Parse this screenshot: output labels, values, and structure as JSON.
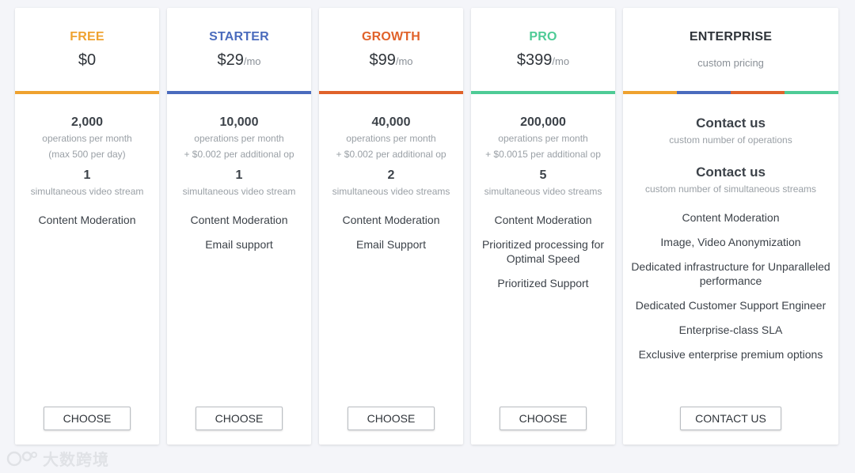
{
  "plans": [
    {
      "name": "FREE",
      "color": "#efa22f",
      "price": "$0",
      "per": "",
      "ops": "2,000",
      "ops_sub1": "operations per month",
      "ops_sub2": "(max 500 per day)",
      "streams": "1",
      "streams_sub": "simultaneous video stream",
      "features": [
        "Content Moderation"
      ],
      "button": "CHOOSE"
    },
    {
      "name": "STARTER",
      "color": "#4a6bbd",
      "price": "$29",
      "per": "/mo",
      "ops": "10,000",
      "ops_sub1": "operations per month",
      "ops_sub2": "+ $0.002 per additional op",
      "streams": "1",
      "streams_sub": "simultaneous video stream",
      "features": [
        "Content Moderation",
        "Email support"
      ],
      "button": "CHOOSE"
    },
    {
      "name": "GROWTH",
      "color": "#e0622a",
      "price": "$99",
      "per": "/mo",
      "ops": "40,000",
      "ops_sub1": "operations per month",
      "ops_sub2": "+ $0.002 per additional op",
      "streams": "2",
      "streams_sub": "simultaneous video streams",
      "features": [
        "Content Moderation",
        "Email Support"
      ],
      "button": "CHOOSE"
    },
    {
      "name": "PRO",
      "color": "#4ecb96",
      "price": "$399",
      "per": "/mo",
      "ops": "200,000",
      "ops_sub1": "operations per month",
      "ops_sub2": "+ $0.0015 per additional op",
      "streams": "5",
      "streams_sub": "simultaneous video streams",
      "features": [
        "Content Moderation",
        "Prioritized processing for Optimal Speed",
        "Prioritized Support"
      ],
      "button": "CHOOSE"
    }
  ],
  "enterprise": {
    "name": "ENTERPRISE",
    "name_color": "#2f343a",
    "custom": "custom pricing",
    "bar_colors": [
      "#efa22f",
      "#4a6bbd",
      "#e0622a",
      "#4ecb96"
    ],
    "ops": "Contact us",
    "ops_sub": "custom number of operations",
    "streams": "Contact us",
    "streams_sub": "custom number of simultaneous streams",
    "features": [
      "Content Moderation",
      "Image, Video Anonymization",
      "Dedicated infrastructure for Unparalleled performance",
      "Dedicated Customer Support Engineer",
      "Enterprise-class SLA",
      "Exclusive enterprise premium options"
    ],
    "button": "CONTACT US"
  },
  "watermark": "大数跨境"
}
